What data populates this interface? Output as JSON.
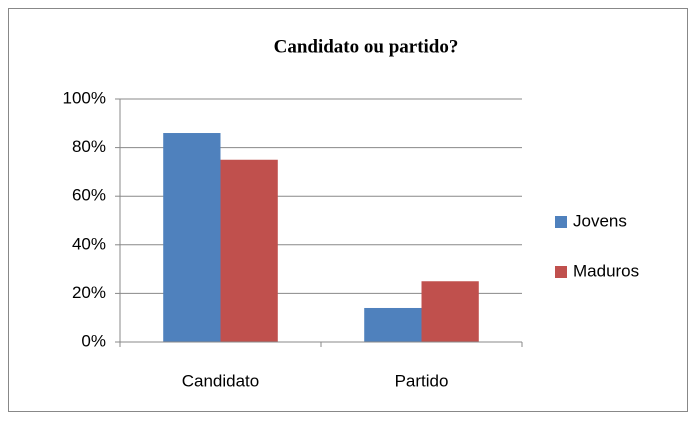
{
  "chart_data": {
    "type": "bar",
    "title": "Candidato ou partido?",
    "categories": [
      "Candidato",
      "Partido"
    ],
    "series": [
      {
        "name": "Jovens",
        "color": "#4f81bd",
        "values": [
          86,
          14
        ]
      },
      {
        "name": "Maduros",
        "color": "#c0504d",
        "values": [
          75,
          25
        ]
      }
    ],
    "ylim": [
      0,
      100
    ],
    "yticks": [
      {
        "value": 0,
        "label": "0%"
      },
      {
        "value": 20,
        "label": "20%"
      },
      {
        "value": 40,
        "label": "40%"
      },
      {
        "value": 60,
        "label": "60%"
      },
      {
        "value": 80,
        "label": "80%"
      },
      {
        "value": 100,
        "label": "100%"
      }
    ],
    "grid": true,
    "legend": "right"
  }
}
